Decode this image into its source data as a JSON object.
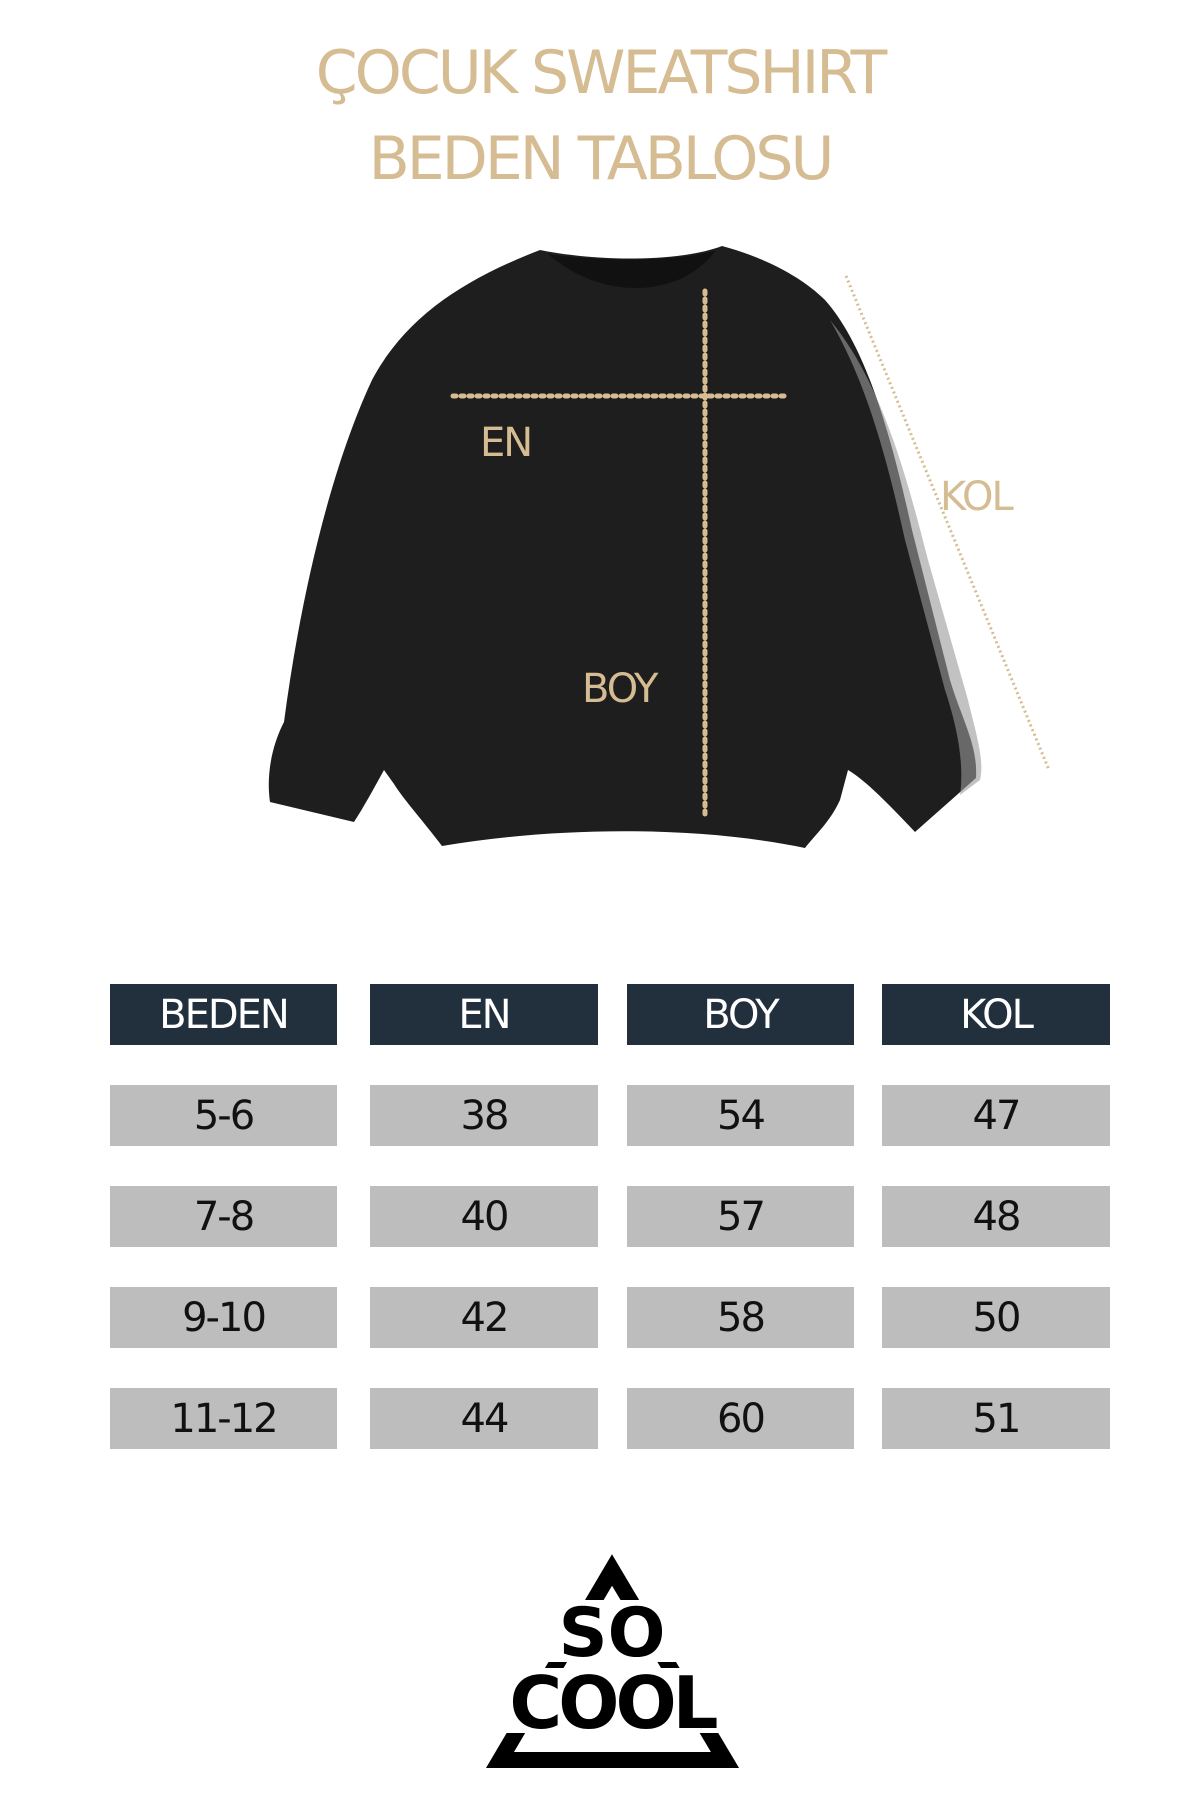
{
  "title": {
    "line1": "ÇOCUK SWEATSHIRT",
    "line2": "BEDEN TABLOSU"
  },
  "diagram": {
    "labels": {
      "en": "EN",
      "boy": "BOY",
      "kol": "KOL"
    },
    "garment_color": "#1e1e1e",
    "measure_color": "#d6bc92"
  },
  "table": {
    "headers": [
      "BEDEN",
      "EN",
      "BOY",
      "KOL"
    ],
    "rows": [
      [
        "5-6",
        "38",
        "54",
        "47"
      ],
      [
        "7-8",
        "40",
        "57",
        "48"
      ],
      [
        "9-10",
        "42",
        "58",
        "50"
      ],
      [
        "11-12",
        "44",
        "60",
        "51"
      ]
    ],
    "header_color": "#22303e",
    "cell_color": "#bdbdbd"
  },
  "logo": {
    "line1": "SO",
    "line2": "COOL"
  }
}
